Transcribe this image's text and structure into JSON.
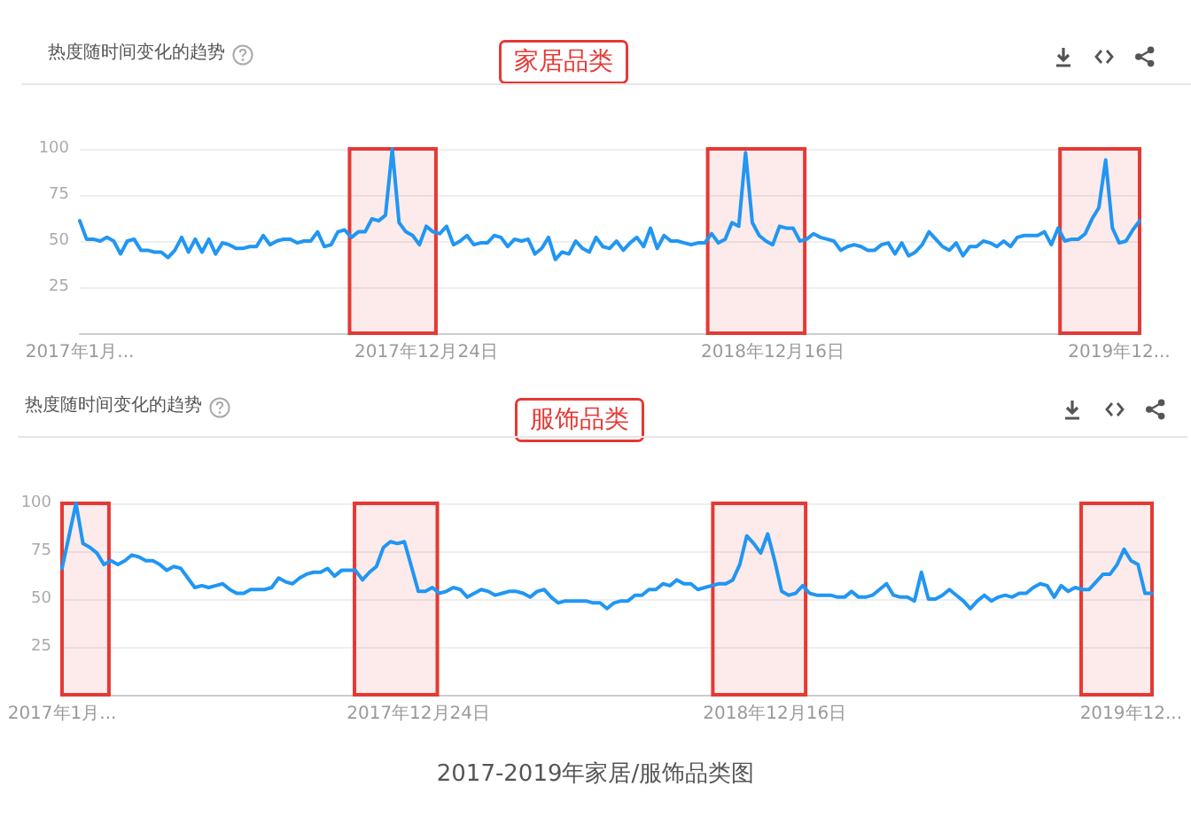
{
  "chart_data": [
    {
      "type": "line",
      "title": "热度随时间变化的趋势",
      "annotations": [
        "家居品类"
      ],
      "x": [
        "2017-01-01",
        "2017-01-08",
        "2017-01-15",
        "2017-01-22",
        "2017-01-29",
        "2017-02-05",
        "2017-02-12",
        "2017-02-19",
        "2017-02-26",
        "2017-03-05",
        "2017-03-12",
        "2017-03-19",
        "2017-03-26",
        "2017-04-02",
        "2017-04-09",
        "2017-04-16",
        "2017-04-23",
        "2017-04-30",
        "2017-05-07",
        "2017-05-14",
        "2017-05-21",
        "2017-05-28",
        "2017-06-04",
        "2017-06-11",
        "2017-06-18",
        "2017-06-25",
        "2017-07-02",
        "2017-07-09",
        "2017-07-16",
        "2017-07-23",
        "2017-07-30",
        "2017-08-06",
        "2017-08-13",
        "2017-08-20",
        "2017-08-27",
        "2017-09-03",
        "2017-09-10",
        "2017-09-17",
        "2017-09-24",
        "2017-10-01",
        "2017-10-08",
        "2017-10-15",
        "2017-10-22",
        "2017-10-29",
        "2017-11-05",
        "2017-11-12",
        "2017-11-19",
        "2017-11-26",
        "2017-12-03",
        "2017-12-10",
        "2017-12-17",
        "2017-12-24",
        "2017-12-31",
        "2018-01-07",
        "2018-01-14",
        "2018-01-21",
        "2018-01-28",
        "2018-02-04",
        "2018-02-11",
        "2018-02-18",
        "2018-02-25",
        "2018-03-04",
        "2018-03-11",
        "2018-03-18",
        "2018-03-25",
        "2018-04-01",
        "2018-04-08",
        "2018-04-15",
        "2018-04-22",
        "2018-04-29",
        "2018-05-06",
        "2018-05-13",
        "2018-05-20",
        "2018-05-27",
        "2018-06-03",
        "2018-06-10",
        "2018-06-17",
        "2018-06-24",
        "2018-07-01",
        "2018-07-08",
        "2018-07-15",
        "2018-07-22",
        "2018-07-29",
        "2018-08-05",
        "2018-08-12",
        "2018-08-19",
        "2018-08-26",
        "2018-09-02",
        "2018-09-09",
        "2018-09-16",
        "2018-09-23",
        "2018-09-30",
        "2018-10-07",
        "2018-10-14",
        "2018-10-21",
        "2018-10-28",
        "2018-11-04",
        "2018-11-11",
        "2018-11-18",
        "2018-11-25",
        "2018-12-02",
        "2018-12-09",
        "2018-12-16",
        "2018-12-23",
        "2018-12-30",
        "2019-01-06",
        "2019-01-13",
        "2019-01-20",
        "2019-01-27",
        "2019-02-03",
        "2019-02-10",
        "2019-02-17",
        "2019-02-24",
        "2019-03-03",
        "2019-03-10",
        "2019-03-17",
        "2019-03-24",
        "2019-03-31",
        "2019-04-07",
        "2019-04-14",
        "2019-04-21",
        "2019-04-28",
        "2019-05-05",
        "2019-05-12",
        "2019-05-19",
        "2019-05-26",
        "2019-06-02",
        "2019-06-09",
        "2019-06-16",
        "2019-06-23",
        "2019-06-30",
        "2019-07-07",
        "2019-07-14",
        "2019-07-21",
        "2019-07-28",
        "2019-08-04",
        "2019-08-11",
        "2019-08-18",
        "2019-08-25",
        "2019-09-01",
        "2019-09-08",
        "2019-09-15",
        "2019-09-22",
        "2019-09-29",
        "2019-10-06",
        "2019-10-13",
        "2019-10-20",
        "2019-10-27",
        "2019-11-03",
        "2019-11-10",
        "2019-11-17",
        "2019-11-24",
        "2019-12-01",
        "2019-12-08",
        "2019-12-15",
        "2019-12-22",
        "2019-12-29"
      ],
      "values": [
        61,
        51,
        51,
        50,
        52,
        50,
        43,
        50,
        51,
        45,
        45,
        44,
        44,
        41,
        45,
        52,
        44,
        51,
        44,
        51,
        43,
        49,
        48,
        46,
        46,
        47,
        47,
        53,
        48,
        50,
        51,
        51,
        49,
        50,
        50,
        55,
        47,
        48,
        55,
        56,
        52,
        55,
        55,
        62,
        61,
        64,
        100,
        60,
        55,
        53,
        48,
        58,
        55,
        54,
        58,
        48,
        50,
        53,
        48,
        49,
        49,
        53,
        52,
        47,
        51,
        50,
        51,
        43,
        46,
        52,
        40,
        44,
        43,
        50,
        46,
        44,
        52,
        47,
        46,
        50,
        45,
        49,
        52,
        47,
        57,
        46,
        53,
        50,
        50,
        49,
        48,
        49,
        49,
        54,
        49,
        51,
        60,
        58,
        98,
        60,
        53,
        50,
        48,
        58,
        57,
        57,
        50,
        51,
        54,
        52,
        51,
        50,
        45,
        47,
        48,
        47,
        45,
        45,
        48,
        49,
        43,
        49,
        42,
        44,
        48,
        55,
        51,
        47,
        45,
        49,
        42,
        47,
        47,
        50,
        49,
        47,
        50,
        47,
        52,
        53,
        53,
        53,
        55,
        48,
        57,
        50,
        51,
        51,
        54,
        62,
        68,
        94,
        57,
        49,
        50,
        56,
        61
      ],
      "color": "#2196f3",
      "xlim": [
        "2017-01-01",
        "2019-12-29"
      ],
      "xticks": [
        {
          "value": "2017-01-01",
          "label": "2017年1月..."
        },
        {
          "value": "2017-12-24",
          "label": "2017年12月24日"
        },
        {
          "value": "2018-12-16",
          "label": "2018年12月16日"
        },
        {
          "value": "2019-12-08",
          "label": "2019年12..."
        }
      ],
      "ylim": [
        0,
        100
      ],
      "yticks": [
        25,
        50,
        75,
        100
      ],
      "grid": "y",
      "bands": [
        {
          "axis": "x",
          "from": "2017-10-06",
          "to": "2018-01-03",
          "color": "#e53935"
        },
        {
          "axis": "x",
          "from": "2018-10-10",
          "to": "2019-01-18",
          "color": "#e53935"
        },
        {
          "axis": "x",
          "from": "2019-10-08",
          "to": "2019-12-29",
          "color": "#e53935"
        }
      ]
    },
    {
      "type": "line",
      "title": "热度随时间变化的趋势",
      "annotations": [
        "服饰品类",
        "2017-2019年家居/服饰品类图"
      ],
      "x": [
        "2017-01-01",
        "2017-01-08",
        "2017-01-15",
        "2017-01-22",
        "2017-01-29",
        "2017-02-05",
        "2017-02-12",
        "2017-02-19",
        "2017-02-26",
        "2017-03-05",
        "2017-03-12",
        "2017-03-19",
        "2017-03-26",
        "2017-04-02",
        "2017-04-09",
        "2017-04-16",
        "2017-04-23",
        "2017-04-30",
        "2017-05-07",
        "2017-05-14",
        "2017-05-21",
        "2017-05-28",
        "2017-06-04",
        "2017-06-11",
        "2017-06-18",
        "2017-06-25",
        "2017-07-02",
        "2017-07-09",
        "2017-07-16",
        "2017-07-23",
        "2017-07-30",
        "2017-08-06",
        "2017-08-13",
        "2017-08-20",
        "2017-08-27",
        "2017-09-03",
        "2017-09-10",
        "2017-09-17",
        "2017-09-24",
        "2017-10-01",
        "2017-10-08",
        "2017-10-15",
        "2017-10-22",
        "2017-10-29",
        "2017-11-05",
        "2017-11-12",
        "2017-11-19",
        "2017-11-26",
        "2017-12-03",
        "2017-12-10",
        "2017-12-17",
        "2017-12-24",
        "2017-12-31",
        "2018-01-07",
        "2018-01-14",
        "2018-01-21",
        "2018-01-28",
        "2018-02-04",
        "2018-02-11",
        "2018-02-18",
        "2018-02-25",
        "2018-03-04",
        "2018-03-11",
        "2018-03-18",
        "2018-03-25",
        "2018-04-01",
        "2018-04-08",
        "2018-04-15",
        "2018-04-22",
        "2018-04-29",
        "2018-05-06",
        "2018-05-13",
        "2018-05-20",
        "2018-05-27",
        "2018-06-03",
        "2018-06-10",
        "2018-06-17",
        "2018-06-24",
        "2018-07-01",
        "2018-07-08",
        "2018-07-15",
        "2018-07-22",
        "2018-07-29",
        "2018-08-05",
        "2018-08-12",
        "2018-08-19",
        "2018-08-26",
        "2018-09-02",
        "2018-09-09",
        "2018-09-16",
        "2018-09-23",
        "2018-09-30",
        "2018-10-07",
        "2018-10-14",
        "2018-10-21",
        "2018-10-28",
        "2018-11-04",
        "2018-11-11",
        "2018-11-18",
        "2018-11-25",
        "2018-12-02",
        "2018-12-09",
        "2018-12-16",
        "2018-12-23",
        "2018-12-30",
        "2019-01-06",
        "2019-01-13",
        "2019-01-20",
        "2019-01-27",
        "2019-02-03",
        "2019-02-10",
        "2019-02-17",
        "2019-02-24",
        "2019-03-03",
        "2019-03-10",
        "2019-03-17",
        "2019-03-24",
        "2019-03-31",
        "2019-04-07",
        "2019-04-14",
        "2019-04-21",
        "2019-04-28",
        "2019-05-05",
        "2019-05-12",
        "2019-05-19",
        "2019-05-26",
        "2019-06-02",
        "2019-06-09",
        "2019-06-16",
        "2019-06-23",
        "2019-06-30",
        "2019-07-07",
        "2019-07-14",
        "2019-07-21",
        "2019-07-28",
        "2019-08-04",
        "2019-08-11",
        "2019-08-18",
        "2019-08-25",
        "2019-09-01",
        "2019-09-08",
        "2019-09-15",
        "2019-09-22",
        "2019-09-29",
        "2019-10-06",
        "2019-10-13",
        "2019-10-20",
        "2019-10-27",
        "2019-11-03",
        "2019-11-10",
        "2019-11-17",
        "2019-11-24",
        "2019-12-01",
        "2019-12-08",
        "2019-12-15",
        "2019-12-22",
        "2019-12-29"
      ],
      "values": [
        66,
        83,
        100,
        79,
        77,
        74,
        68,
        70,
        68,
        70,
        73,
        72,
        70,
        70,
        68,
        65,
        67,
        66,
        61,
        56,
        57,
        56,
        57,
        58,
        55,
        53,
        53,
        55,
        55,
        55,
        56,
        61,
        59,
        58,
        61,
        63,
        64,
        64,
        66,
        62,
        65,
        65,
        65,
        60,
        64,
        67,
        77,
        80,
        79,
        80,
        67,
        54,
        54,
        56,
        53,
        54,
        56,
        55,
        51,
        53,
        55,
        54,
        52,
        53,
        54,
        54,
        53,
        51,
        54,
        55,
        51,
        48,
        49,
        49,
        49,
        49,
        48,
        48,
        45,
        48,
        49,
        49,
        52,
        52,
        55,
        55,
        58,
        57,
        60,
        58,
        58,
        55,
        56,
        57,
        58,
        58,
        60,
        68,
        83,
        79,
        74,
        84,
        70,
        54,
        52,
        53,
        57,
        53,
        52,
        52,
        52,
        51,
        51,
        54,
        51,
        51,
        52,
        55,
        58,
        52,
        51,
        51,
        49,
        64,
        50,
        50,
        52,
        55,
        52,
        49,
        45,
        49,
        52,
        49,
        51,
        52,
        51,
        53,
        53,
        56,
        58,
        57,
        51,
        57,
        54,
        56,
        55,
        55,
        59,
        63,
        63,
        68,
        76,
        70,
        68,
        53,
        53
      ],
      "color": "#2196f3",
      "xlim": [
        "2017-01-01",
        "2019-12-29"
      ],
      "xticks": [
        {
          "value": "2017-01-01",
          "label": "2017年1月..."
        },
        {
          "value": "2017-12-24",
          "label": "2017年12月24日"
        },
        {
          "value": "2018-12-16",
          "label": "2018年12月16日"
        },
        {
          "value": "2019-12-08",
          "label": "2019年12..."
        }
      ],
      "ylim": [
        0,
        100
      ],
      "yticks": [
        25,
        50,
        75,
        100
      ],
      "grid": "y",
      "bands": [
        {
          "axis": "x",
          "from": "2017-01-01",
          "to": "2017-02-17",
          "color": "#e53935"
        },
        {
          "axis": "x",
          "from": "2017-10-21",
          "to": "2018-01-12",
          "color": "#e53935"
        },
        {
          "axis": "x",
          "from": "2018-10-15",
          "to": "2019-01-16",
          "color": "#e53935"
        },
        {
          "axis": "x",
          "from": "2019-10-19",
          "to": "2019-12-29",
          "color": "#e53935"
        }
      ]
    }
  ]
}
